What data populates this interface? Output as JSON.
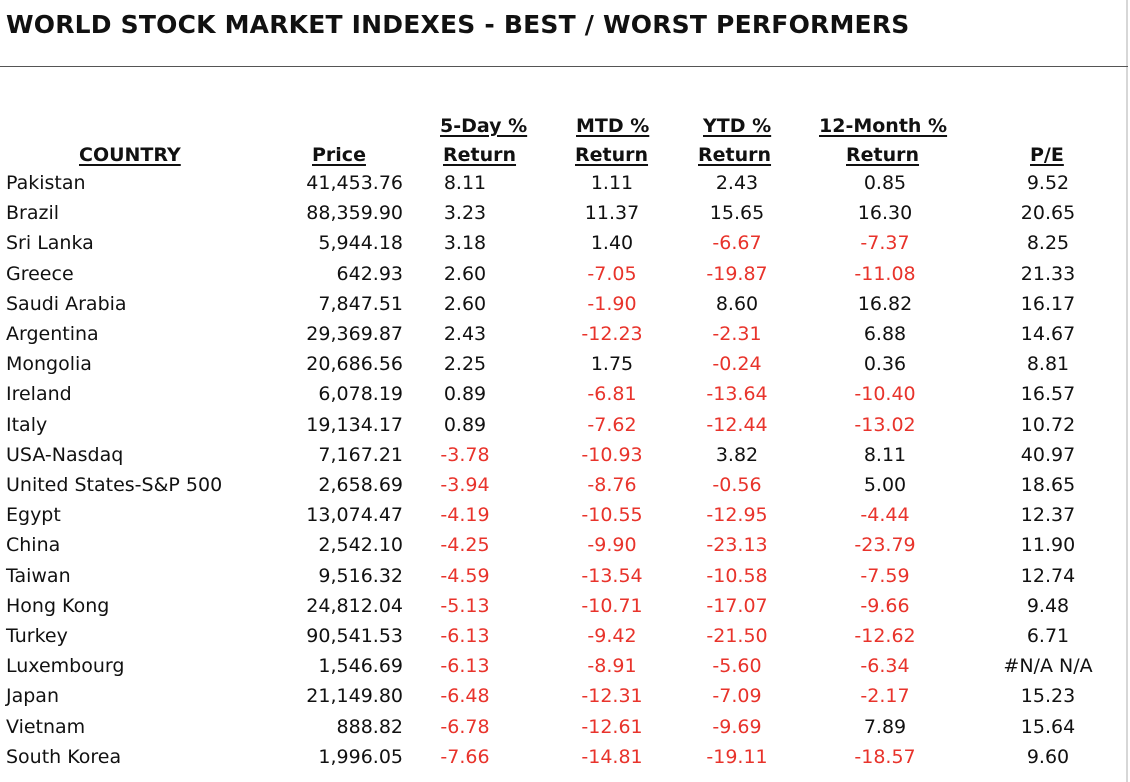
{
  "title": "WORLD STOCK MARKET INDEXES - BEST / WORST PERFORMERS",
  "headers": {
    "country": "COUNTRY",
    "price": "Price",
    "day5": [
      "5-Day %",
      "Return"
    ],
    "mtd": [
      "MTD %",
      "Return"
    ],
    "ytd": [
      "YTD %",
      "Return"
    ],
    "m12": [
      "12-Month %",
      "Return"
    ],
    "pe": "P/E"
  },
  "colors": {
    "negative": "#e8332b",
    "text": "#111111"
  },
  "rows": [
    {
      "country": "Pakistan",
      "price": "41,453.76",
      "day5": "8.11",
      "mtd": "1.11",
      "ytd": "2.43",
      "m12": "0.85",
      "pe": "9.52"
    },
    {
      "country": "Brazil",
      "price": "88,359.90",
      "day5": "3.23",
      "mtd": "11.37",
      "ytd": "15.65",
      "m12": "16.30",
      "pe": "20.65"
    },
    {
      "country": "Sri Lanka",
      "price": "5,944.18",
      "day5": "3.18",
      "mtd": "1.40",
      "ytd": "-6.67",
      "m12": "-7.37",
      "pe": "8.25"
    },
    {
      "country": "Greece",
      "price": "642.93",
      "day5": "2.60",
      "mtd": "-7.05",
      "ytd": "-19.87",
      "m12": "-11.08",
      "pe": "21.33"
    },
    {
      "country": "Saudi Arabia",
      "price": "7,847.51",
      "day5": "2.60",
      "mtd": "-1.90",
      "ytd": "8.60",
      "m12": "16.82",
      "pe": "16.17"
    },
    {
      "country": "Argentina",
      "price": "29,369.87",
      "day5": "2.43",
      "mtd": "-12.23",
      "ytd": "-2.31",
      "m12": "6.88",
      "pe": "14.67"
    },
    {
      "country": "Mongolia",
      "price": "20,686.56",
      "day5": "2.25",
      "mtd": "1.75",
      "ytd": "-0.24",
      "m12": "0.36",
      "pe": "8.81"
    },
    {
      "country": "Ireland",
      "price": "6,078.19",
      "day5": "0.89",
      "mtd": "-6.81",
      "ytd": "-13.64",
      "m12": "-10.40",
      "pe": "16.57"
    },
    {
      "country": "Italy",
      "price": "19,134.17",
      "day5": "0.89",
      "mtd": "-7.62",
      "ytd": "-12.44",
      "m12": "-13.02",
      "pe": "10.72"
    },
    {
      "country": "USA-Nasdaq",
      "price": "7,167.21",
      "day5": "-3.78",
      "mtd": "-10.93",
      "ytd": "3.82",
      "m12": "8.11",
      "pe": "40.97"
    },
    {
      "country": "United States-S&P 500",
      "price": "2,658.69",
      "day5": "-3.94",
      "mtd": "-8.76",
      "ytd": "-0.56",
      "m12": "5.00",
      "pe": "18.65"
    },
    {
      "country": "Egypt",
      "price": "13,074.47",
      "day5": "-4.19",
      "mtd": "-10.55",
      "ytd": "-12.95",
      "m12": "-4.44",
      "pe": "12.37"
    },
    {
      "country": "China",
      "price": "2,542.10",
      "day5": "-4.25",
      "mtd": "-9.90",
      "ytd": "-23.13",
      "m12": "-23.79",
      "pe": "11.90"
    },
    {
      "country": "Taiwan",
      "price": "9,516.32",
      "day5": "-4.59",
      "mtd": "-13.54",
      "ytd": "-10.58",
      "m12": "-7.59",
      "pe": "12.74"
    },
    {
      "country": "Hong Kong",
      "price": "24,812.04",
      "day5": "-5.13",
      "mtd": "-10.71",
      "ytd": "-17.07",
      "m12": "-9.66",
      "pe": "9.48"
    },
    {
      "country": "Turkey",
      "price": "90,541.53",
      "day5": "-6.13",
      "mtd": "-9.42",
      "ytd": "-21.50",
      "m12": "-12.62",
      "pe": "6.71"
    },
    {
      "country": "Luxembourg",
      "price": "1,546.69",
      "day5": "-6.13",
      "mtd": "-8.91",
      "ytd": "-5.60",
      "m12": "-6.34",
      "pe": "#N/A N/A"
    },
    {
      "country": "Japan",
      "price": "21,149.80",
      "day5": "-6.48",
      "mtd": "-12.31",
      "ytd": "-7.09",
      "m12": "-2.17",
      "pe": "15.23"
    },
    {
      "country": "Vietnam",
      "price": "888.82",
      "day5": "-6.78",
      "mtd": "-12.61",
      "ytd": "-9.69",
      "m12": "7.89",
      "pe": "15.64"
    },
    {
      "country": "South Korea",
      "price": "1,996.05",
      "day5": "-7.66",
      "mtd": "-14.81",
      "ytd": "-19.11",
      "m12": "-18.57",
      "pe": "9.60"
    }
  ]
}
